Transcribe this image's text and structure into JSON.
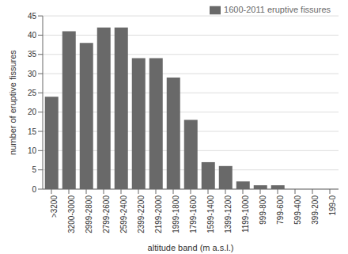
{
  "chart_data": {
    "type": "bar",
    "categories": [
      ">3200",
      "3200-3000",
      "2999-2800",
      "2799-2600",
      "2599-2400",
      "2399-2200",
      "2199-2000",
      "1999-1800",
      "1799-1600",
      "1599-1400",
      "1399-1200",
      "1199-1000",
      "999-800",
      "799-600",
      "599-400",
      "399-200",
      "199-0"
    ],
    "series": [
      {
        "name": "1600-2011 eruptive fissures",
        "color": "#696969",
        "values": [
          24,
          41,
          38,
          42,
          42,
          34,
          34,
          29,
          18,
          7,
          6,
          2,
          1,
          1,
          0,
          0,
          0
        ]
      }
    ],
    "xlabel": "altitude band (m a.s.l.)",
    "ylabel": "number of eruptive fissures",
    "ylim": [
      0,
      45
    ],
    "yticks": [
      0,
      5,
      10,
      15,
      20,
      25,
      30,
      35,
      40,
      45
    ],
    "grid": true,
    "legend": "upper right"
  }
}
